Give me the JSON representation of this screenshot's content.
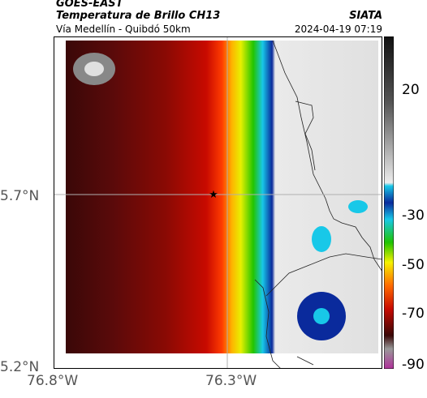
{
  "header": {
    "agency": "GOES-EAST",
    "product": "Temperatura de Brillo CH13",
    "source": "SIATA",
    "region": "Vía Medellín - Quibdó 50km",
    "timestamp": "2024-04-19 07:19"
  },
  "map": {
    "lat_ticks": [
      "5.7°N",
      "5.2°N"
    ],
    "lon_ticks": [
      "76.8°W",
      "76.3°W"
    ],
    "marker_icon": "star-icon"
  },
  "colorbar": {
    "ticks": [
      "20",
      "-30",
      "-50",
      "-70",
      "-90"
    ],
    "colors": {
      "warm_dark": "#3a0707",
      "red": "#c80a00",
      "orange": "#ff6a00",
      "yellow": "#f6f200",
      "green": "#1fc300",
      "cyan": "#18c8e8",
      "blue": "#0a2a9c",
      "magenta": "#b0309a",
      "cloud": "#e8e8e8"
    }
  }
}
